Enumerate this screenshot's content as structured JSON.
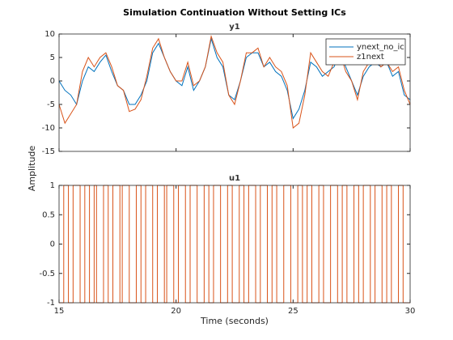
{
  "title": "Simulation Continuation Without Setting ICs",
  "ylabel": "Amplitude",
  "xlabel": "Time (seconds)",
  "chart_data": [
    {
      "type": "line",
      "title": "y1",
      "x": [
        15,
        15.25,
        15.5,
        15.75,
        16,
        16.25,
        16.5,
        16.75,
        17,
        17.25,
        17.5,
        17.75,
        18,
        18.25,
        18.5,
        18.75,
        19,
        19.25,
        19.5,
        19.75,
        20,
        20.25,
        20.5,
        20.75,
        21,
        21.25,
        21.5,
        21.75,
        22,
        22.25,
        22.5,
        22.75,
        23,
        23.25,
        23.5,
        23.75,
        24,
        24.25,
        24.5,
        24.75,
        25,
        25.25,
        25.5,
        25.75,
        26,
        26.25,
        26.5,
        26.75,
        27,
        27.25,
        27.5,
        27.75,
        28,
        28.25,
        28.5,
        28.75,
        29,
        29.25,
        29.5,
        29.75,
        30
      ],
      "series": [
        {
          "name": "ynext_no_ic",
          "color": "#0072BD",
          "values": [
            0,
            -2,
            -3,
            -5,
            0,
            3,
            2,
            4,
            5.5,
            2,
            -1,
            -2,
            -5,
            -5,
            -3,
            0,
            6,
            8,
            5,
            2,
            0,
            -1,
            3,
            -2,
            0,
            3,
            9,
            5,
            3,
            -3,
            -4,
            0,
            5,
            6,
            6,
            3,
            4,
            2,
            1,
            -2,
            -8,
            -6,
            -2,
            4,
            3,
            1,
            2,
            3,
            6,
            3,
            0,
            -3,
            1,
            3,
            4,
            3,
            4,
            1,
            2,
            -3,
            -4
          ]
        },
        {
          "name": "z1next",
          "color": "#D95319",
          "values": [
            -5,
            -9,
            -7,
            -5,
            2,
            5,
            3,
            5,
            6,
            3,
            -1,
            -2,
            -6.5,
            -6,
            -4,
            1,
            7,
            9,
            5,
            2,
            0,
            0,
            4,
            -1,
            0,
            3,
            9.5,
            6,
            4,
            -3,
            -5,
            0,
            6,
            6,
            7,
            3,
            5,
            3,
            2,
            -1,
            -10,
            -9,
            -3,
            6,
            4,
            2,
            1,
            4,
            6,
            2,
            0,
            -4,
            2,
            4,
            5,
            3,
            4,
            2,
            3,
            -2,
            -5
          ]
        }
      ],
      "xlim": [
        15,
        30
      ],
      "xticks": [
        15,
        20,
        25,
        30
      ],
      "ylim": [
        -15,
        10
      ],
      "yticks": [
        -15,
        -10,
        -5,
        0,
        5,
        10
      ],
      "legend": "northeast"
    },
    {
      "type": "stairs",
      "title": "u1",
      "x": [
        15,
        15.2,
        15.4,
        15.6,
        15.9,
        16.1,
        16.3,
        16.5,
        16.6,
        16.9,
        17.1,
        17.3,
        17.6,
        17.7,
        18,
        18.3,
        18.5,
        18.7,
        19,
        19.2,
        19.5,
        19.6,
        19.9,
        20.1,
        20.4,
        20.6,
        20.9,
        21.2,
        21.4,
        21.6,
        21.9,
        22.2,
        22.4,
        22.7,
        22.9,
        23.1,
        23.4,
        23.6,
        23.9,
        24.1,
        24.3,
        24.6,
        24.9,
        25.2,
        25.4,
        25.6,
        25.8,
        26.1,
        26.3,
        26.6,
        26.9,
        27.1,
        27.3,
        27.6,
        27.8,
        28,
        28.3,
        28.5,
        28.8,
        29,
        29.2,
        29.5,
        29.7,
        30
      ],
      "series": [
        {
          "name": "u1",
          "color": "#D95319",
          "values": [
            -1,
            1,
            -1,
            1,
            -1,
            1,
            -1,
            1,
            -1,
            1,
            -1,
            1,
            -1,
            1,
            -1,
            1,
            -1,
            1,
            -1,
            1,
            -1,
            1,
            -1,
            1,
            -1,
            1,
            -1,
            1,
            -1,
            1,
            -1,
            1,
            -1,
            1,
            -1,
            1,
            -1,
            1,
            -1,
            1,
            -1,
            1,
            -1,
            1,
            -1,
            1,
            -1,
            1,
            -1,
            1,
            -1,
            1,
            -1,
            1,
            -1,
            1,
            -1,
            1,
            -1,
            1,
            -1,
            1,
            -1,
            -1
          ]
        }
      ],
      "xlim": [
        15,
        30
      ],
      "xticks": [
        15,
        20,
        25,
        30
      ],
      "ylim": [
        -1,
        1
      ],
      "yticks": [
        -1,
        -0.5,
        0,
        0.5,
        1
      ]
    }
  ]
}
